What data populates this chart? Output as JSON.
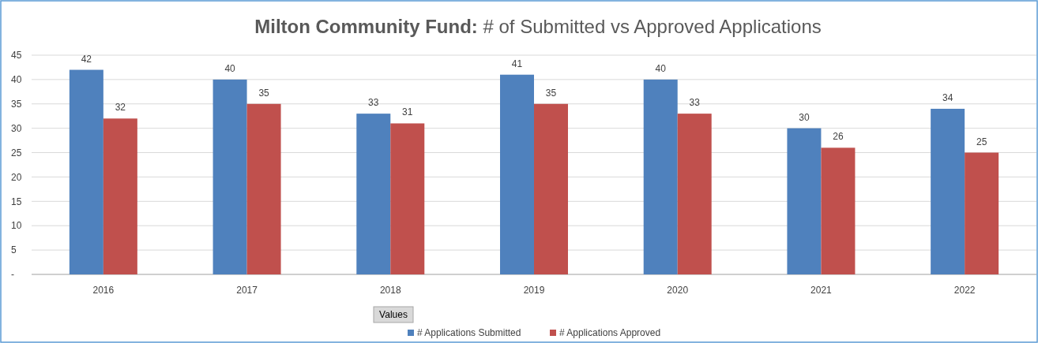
{
  "chart_data": {
    "type": "bar",
    "title": "Milton Community Fund: # of Submitted vs Approved Applications",
    "categories": [
      "2016",
      "2017",
      "2018",
      "2019",
      "2020",
      "2021",
      "2022"
    ],
    "series": [
      {
        "name": "# Applications Submitted",
        "color": "#4f81bd",
        "values": [
          42,
          40,
          33,
          41,
          40,
          30,
          34
        ]
      },
      {
        "name": "# Applications Approved",
        "color": "#c0504d",
        "values": [
          32,
          35,
          31,
          35,
          33,
          26,
          25
        ]
      }
    ],
    "ylim": [
      0,
      45
    ],
    "yticks": [
      {
        "value": 0,
        "label": "-"
      },
      5,
      10,
      15,
      20,
      25,
      30,
      35,
      40,
      45
    ],
    "grid": "y",
    "legend": "bottom",
    "data_labels": true,
    "annotations": [
      "Values"
    ]
  }
}
